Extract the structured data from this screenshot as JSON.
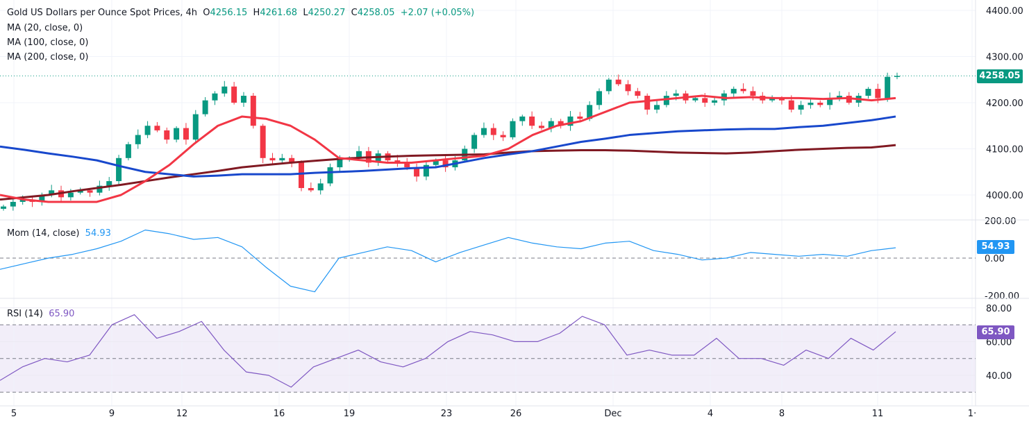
{
  "header": {
    "title": "Gold US Dollars per Ounce Spot Prices, 4h",
    "o_label": "O",
    "o": "4256.15",
    "h_label": "H",
    "h": "4261.68",
    "l_label": "L",
    "l": "4250.27",
    "c_label": "C",
    "c": "4258.05",
    "change": "+2.07 (+0.05%)"
  },
  "indicators": {
    "ma20": "MA (20, close, 0)",
    "ma100": "MA (100, close, 0)",
    "ma200": "MA (200, close, 0)",
    "mom_label": "Mom (14, close)",
    "mom_value": "54.93",
    "rsi_label": "RSI (14)",
    "rsi_value": "65.90"
  },
  "colors": {
    "up": "#089981",
    "down": "#f23645",
    "ma20": "#f23645",
    "ma100": "#1848cc",
    "ma200": "#801922",
    "mom": "#2196f3",
    "rsi": "#7e57c2"
  },
  "chart_data": [
    {
      "type": "candlestick",
      "title": "Gold US Dollars per Ounce Spot Prices, 4h",
      "ylim": [
        3950,
        4420
      ],
      "y_ticks": [
        "4400.00",
        "4300.00",
        "4200.00",
        "4100.00",
        "4000.00"
      ],
      "last_price": "4258.05",
      "x_ticks": [
        "5",
        "9",
        "12",
        "16",
        "19",
        "23",
        "26",
        "Dec",
        "4",
        "8",
        "11",
        "1·"
      ],
      "closes": [
        3975,
        3985,
        3990,
        3985,
        4000,
        4010,
        3995,
        4005,
        4010,
        4005,
        4020,
        4030,
        4080,
        4110,
        4130,
        4150,
        4140,
        4120,
        4145,
        4120,
        4175,
        4205,
        4220,
        4235,
        4200,
        4215,
        4150,
        4080,
        4075,
        4080,
        4070,
        4015,
        4010,
        4025,
        4060,
        4080,
        4080,
        4095,
        4070,
        4090,
        4075,
        4070,
        4060,
        4040,
        4065,
        4075,
        4060,
        4075,
        4100,
        4130,
        4145,
        4130,
        4125,
        4160,
        4170,
        4150,
        4145,
        4160,
        4150,
        4170,
        4165,
        4195,
        4225,
        4250,
        4240,
        4225,
        4215,
        4185,
        4195,
        4215,
        4220,
        4205,
        4210,
        4200,
        4205,
        4220,
        4230,
        4225,
        4215,
        4205,
        4210,
        4205,
        4185,
        4195,
        4200,
        4195,
        4210,
        4215,
        4200,
        4215,
        4230,
        4210,
        4256,
        4258
      ],
      "series": [
        {
          "name": "MA (20, close, 0)",
          "values": [
            4000,
            3990,
            3985,
            3985,
            3985,
            4000,
            4030,
            4065,
            4110,
            4150,
            4170,
            4165,
            4150,
            4120,
            4080,
            4075,
            4070,
            4070,
            4075,
            4080,
            4085,
            4100,
            4130,
            4150,
            4160,
            4180,
            4200,
            4205,
            4210,
            4215,
            4210,
            4212,
            4210,
            4210,
            4208,
            4210,
            4205,
            4210
          ]
        },
        {
          "name": "MA (100, close, 0)",
          "values": [
            4105,
            4098,
            4090,
            4083,
            4075,
            4062,
            4050,
            4045,
            4040,
            4042,
            4045,
            4045,
            4045,
            4048,
            4050,
            4052,
            4055,
            4058,
            4060,
            4070,
            4080,
            4088,
            4095,
            4105,
            4115,
            4122,
            4130,
            4134,
            4138,
            4140,
            4142,
            4143,
            4143,
            4147,
            4150,
            4156,
            4162,
            4170
          ]
        },
        {
          "name": "MA (200, close, 0)",
          "values": [
            3990,
            3995,
            4000,
            4008,
            4015,
            4022,
            4030,
            4038,
            4045,
            4052,
            4060,
            4065,
            4070,
            4074,
            4078,
            4081,
            4083,
            4085,
            4086,
            4087,
            4088,
            4092,
            4095,
            4096,
            4097,
            4097,
            4096,
            4094,
            4092,
            4091,
            4090,
            4092,
            4095,
            4098,
            4100,
            4102,
            4103,
            4108
          ]
        }
      ]
    },
    {
      "type": "line",
      "title": "Mom (14, close)",
      "ylim": [
        -210,
        210
      ],
      "y_ticks": [
        "200.00",
        "0.00",
        "-200.00"
      ],
      "last_value": "54.93",
      "values": [
        -60,
        -30,
        0,
        20,
        50,
        90,
        150,
        130,
        100,
        110,
        60,
        -50,
        -150,
        -180,
        0,
        30,
        60,
        40,
        -20,
        30,
        70,
        110,
        80,
        60,
        50,
        80,
        90,
        40,
        20,
        -10,
        0,
        30,
        20,
        10,
        20,
        10,
        40,
        55
      ]
    },
    {
      "type": "line",
      "title": "RSI (14)",
      "ylim": [
        28,
        83
      ],
      "y_ticks": [
        "80.00",
        "60.00",
        "40.00"
      ],
      "bands": [
        70,
        50,
        30
      ],
      "last_value": "65.90",
      "values": [
        37,
        45,
        50,
        48,
        52,
        70,
        76,
        62,
        66,
        72,
        55,
        42,
        40,
        33,
        45,
        50,
        55,
        48,
        45,
        50,
        60,
        66,
        64,
        60,
        60,
        65,
        75,
        70,
        52,
        55,
        52,
        52,
        62,
        50,
        50,
        46,
        55,
        50,
        62,
        55,
        65.9
      ]
    }
  ]
}
